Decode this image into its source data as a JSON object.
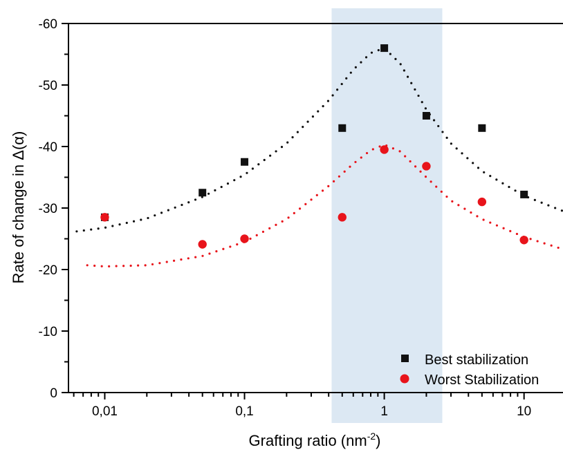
{
  "chart_data": {
    "type": "scatter",
    "title": "",
    "xlabel": "Grafting ratio (nm-2)",
    "ylabel": "Rate of change in Δ(α)",
    "xscale": "log",
    "xlim": [
      0.0055,
      19
    ],
    "ylim": [
      0,
      -60
    ],
    "y_axis_inverted": true,
    "xticks": [
      {
        "value": 0.01,
        "label": "0,01"
      },
      {
        "value": 0.1,
        "label": "0,1"
      },
      {
        "value": 1,
        "label": "1"
      },
      {
        "value": 10,
        "label": "10"
      }
    ],
    "yticks": [
      {
        "value": 0,
        "label": "0"
      },
      {
        "value": -10,
        "label": "-10"
      },
      {
        "value": -20,
        "label": "-20"
      },
      {
        "value": -30,
        "label": "-30"
      },
      {
        "value": -40,
        "label": "-40"
      },
      {
        "value": -50,
        "label": "-50"
      },
      {
        "value": -60,
        "label": "-60"
      }
    ],
    "highlight_band": {
      "x_start": 0.42,
      "x_end": 2.6,
      "color": "#dce8f3"
    },
    "grid": false,
    "legend_position": "bottom-right",
    "series": [
      {
        "name": "Best stabilization",
        "marker": "square",
        "color": "#111111",
        "x": [
          0.01,
          0.05,
          0.1,
          0.5,
          1,
          2,
          5,
          10
        ],
        "y": [
          -28.5,
          -32.5,
          -37.5,
          -43,
          -56,
          -45,
          -43,
          -32.2
        ]
      },
      {
        "name": "Worst Stabilization",
        "marker": "circle",
        "color": "#e8141b",
        "x": [
          0.01,
          0.05,
          0.1,
          0.5,
          1,
          2,
          5,
          10
        ],
        "y": [
          -28.5,
          -24.1,
          -25,
          -28.5,
          -39.5,
          -36.8,
          -31,
          -24.8
        ]
      }
    ],
    "fit_curves": [
      {
        "series": "Best stabilization",
        "color": "#111111",
        "style": "dotted",
        "x": [
          0.0063,
          0.01,
          0.02,
          0.05,
          0.1,
          0.2,
          0.4,
          0.6,
          0.8,
          1.0,
          1.3,
          2,
          3,
          5,
          10,
          19
        ],
        "y": [
          -26.2,
          -26.8,
          -28.3,
          -31.8,
          -35.4,
          -40.5,
          -47.5,
          -52.5,
          -55.2,
          -56,
          -53.5,
          -46,
          -40.5,
          -36,
          -32,
          -29.5
        ]
      },
      {
        "series": "Worst Stabilization",
        "color": "#e8141b",
        "style": "dotted",
        "x": [
          0.0075,
          0.01,
          0.02,
          0.05,
          0.1,
          0.2,
          0.4,
          0.6,
          0.8,
          1.0,
          1.3,
          2,
          3,
          5,
          10,
          19
        ],
        "y": [
          -20.7,
          -20.5,
          -20.7,
          -22.2,
          -24.5,
          -28.2,
          -33.6,
          -37.2,
          -39.4,
          -40.3,
          -39.2,
          -35,
          -31.2,
          -28.2,
          -25.3,
          -23.3
        ]
      }
    ]
  }
}
